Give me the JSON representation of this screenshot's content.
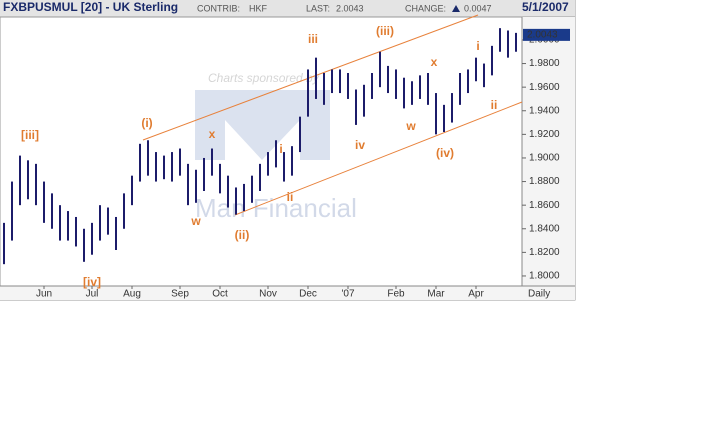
{
  "chart_data": {
    "type": "ohlc",
    "title": "FXBPUSMUL [20] - UK Sterling",
    "contrib_label": "CONTRIB:",
    "contrib": "HKF",
    "last_label": "LAST:",
    "last": 2.0043,
    "change_label": "CHANGE:",
    "change": 0.0047,
    "date": "5/1/2007",
    "period": "Daily",
    "sponsor": "Charts sponsored by",
    "logo": "Man Financial",
    "color": "#1c1c6a",
    "annotation_color": "#e07c30",
    "categories": [
      null,
      null,
      null,
      null,
      null,
      "Jun",
      null,
      null,
      null,
      null,
      null,
      "Jul",
      null,
      null,
      null,
      null,
      "Aug",
      null,
      null,
      null,
      null,
      null,
      "Sep",
      null,
      null,
      null,
      null,
      "Oct",
      null,
      null,
      null,
      null,
      null,
      "Nov",
      null,
      null,
      null,
      null,
      "Dec",
      null,
      null,
      null,
      null,
      "'07",
      null,
      null,
      null,
      null,
      null,
      "Feb",
      null,
      null,
      null,
      null,
      "Mar",
      null,
      null,
      null,
      null,
      "Apr",
      null,
      null,
      null,
      null,
      null
    ],
    "high": [
      1.845,
      1.88,
      1.902,
      1.898,
      1.895,
      1.88,
      1.87,
      1.86,
      1.855,
      1.85,
      1.84,
      1.845,
      1.86,
      1.858,
      1.85,
      1.87,
      1.885,
      1.912,
      1.915,
      1.905,
      1.902,
      1.905,
      1.908,
      1.895,
      1.89,
      1.9,
      1.908,
      1.895,
      1.885,
      1.875,
      1.878,
      1.885,
      1.895,
      1.905,
      1.915,
      1.905,
      1.91,
      1.935,
      1.975,
      1.985,
      1.972,
      1.975,
      1.975,
      1.972,
      1.958,
      1.962,
      1.972,
      1.99,
      1.978,
      1.975,
      1.968,
      1.965,
      1.97,
      1.972,
      1.955,
      1.945,
      1.955,
      1.972,
      1.975,
      1.985,
      1.98,
      1.995,
      2.01,
      2.008,
      2.006
    ],
    "low": [
      1.81,
      1.83,
      1.86,
      1.865,
      1.86,
      1.845,
      1.84,
      1.83,
      1.83,
      1.825,
      1.812,
      1.818,
      1.83,
      1.835,
      1.822,
      1.84,
      1.86,
      1.88,
      1.885,
      1.88,
      1.882,
      1.88,
      1.885,
      1.86,
      1.862,
      1.872,
      1.885,
      1.87,
      1.858,
      1.852,
      1.855,
      1.862,
      1.872,
      1.885,
      1.892,
      1.88,
      1.885,
      1.905,
      1.935,
      1.95,
      1.945,
      1.955,
      1.955,
      1.95,
      1.928,
      1.935,
      1.95,
      1.96,
      1.955,
      1.95,
      1.942,
      1.945,
      1.95,
      1.945,
      1.92,
      1.922,
      1.93,
      1.945,
      1.955,
      1.965,
      1.96,
      1.97,
      1.99,
      1.985,
      1.99
    ],
    "ylim": [
      1.7915,
      2.0186
    ],
    "yticks": [
      {
        "value": 1.8,
        "label": "1.8000"
      },
      {
        "value": 1.82,
        "label": "1.8200"
      },
      {
        "value": 1.84,
        "label": "1.8400"
      },
      {
        "value": 1.86,
        "label": "1.8600"
      },
      {
        "value": 1.88,
        "label": "1.8800"
      },
      {
        "value": 1.9,
        "label": "1.9000"
      },
      {
        "value": 1.92,
        "label": "1.9200"
      },
      {
        "value": 1.94,
        "label": "1.9400"
      },
      {
        "value": 1.96,
        "label": "1.9600"
      },
      {
        "value": 1.98,
        "label": "1.9800"
      },
      {
        "value": 2.0,
        "label": "2.0000"
      }
    ],
    "annotations": [
      "[iii]",
      "[iv]",
      "(i)",
      "x",
      "w",
      "(ii)",
      "i",
      "ii",
      "iii",
      "iv",
      "(iii)",
      "w",
      "x",
      "(iv)",
      "i",
      "ii"
    ]
  }
}
